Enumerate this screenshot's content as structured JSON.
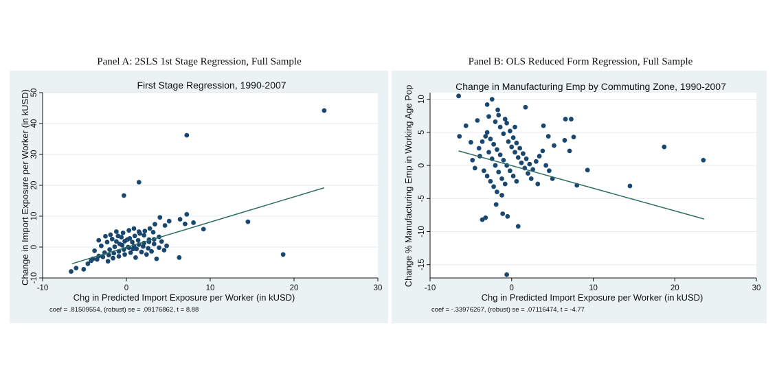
{
  "panels": [
    {
      "caption": "Panel A: 2SLS 1st Stage Regression, Full Sample",
      "note": "coef = .81509554, (robust) se = .09176862, t = 8.88"
    },
    {
      "caption": "Panel B: OLS Reduced Form Regression, Full Sample",
      "note": "coef = -.33976267, (robust) se = .07116474, t = -4.77"
    }
  ],
  "colors": {
    "frame": "#eaf2f3",
    "plot_bg": "#ffffff",
    "grid": "#e6eaec",
    "marker": "#1a476f",
    "fit_line": "#2d6e62"
  },
  "chart_data": [
    {
      "type": "scatter",
      "title": "First Stage Regression, 1990-2007",
      "xlabel": "Chg in Predicted Import Exposure per Worker (in kUSD)",
      "ylabel": "Change in Import Exposure per Worker (in kUSD)",
      "xlim": [
        -10,
        30
      ],
      "ylim": [
        -10,
        50
      ],
      "xticks": [
        -10,
        0,
        10,
        20,
        30
      ],
      "yticks": [
        -10,
        0,
        10,
        20,
        30,
        40,
        50
      ],
      "grid": true,
      "series": [
        {
          "points": [
            [
              23.6,
              44.2
            ],
            [
              7.2,
              36.2
            ],
            [
              1.5,
              21.0
            ],
            [
              -0.3,
              16.7
            ],
            [
              14.5,
              8.2
            ],
            [
              18.7,
              -2.4
            ],
            [
              9.2,
              5.8
            ],
            [
              6.3,
              -3.4
            ],
            [
              7.2,
              10.6
            ],
            [
              8.0,
              7.9
            ],
            [
              7.0,
              7.5
            ],
            [
              6.4,
              9.0
            ],
            [
              -6.6,
              -7.9
            ],
            [
              -6.0,
              -6.8
            ],
            [
              -5.1,
              -7.2
            ],
            [
              -4.6,
              -5.4
            ],
            [
              -4.0,
              -3.8
            ],
            [
              -3.3,
              -2.9
            ],
            [
              -2.6,
              -1.8
            ],
            [
              -2.0,
              -0.8
            ],
            [
              -1.4,
              0.1
            ],
            [
              -0.8,
              1.0
            ],
            [
              -0.2,
              1.9
            ],
            [
              0.4,
              2.8
            ],
            [
              1.0,
              3.6
            ],
            [
              1.6,
              4.4
            ],
            [
              2.2,
              5.2
            ],
            [
              2.8,
              6.0
            ],
            [
              3.4,
              7.4
            ],
            [
              4.0,
              9.6
            ],
            [
              4.6,
              7.0
            ],
            [
              5.1,
              8.4
            ],
            [
              -3.8,
              -1.2
            ],
            [
              -3.0,
              0.4
            ],
            [
              -2.3,
              1.6
            ],
            [
              -1.7,
              2.6
            ],
            [
              -1.0,
              3.6
            ],
            [
              -0.4,
              4.6
            ],
            [
              0.3,
              5.4
            ],
            [
              0.9,
              6.0
            ],
            [
              1.5,
              5.0
            ],
            [
              2.1,
              3.8
            ],
            [
              2.7,
              2.4
            ],
            [
              3.3,
              1.0
            ],
            [
              3.9,
              -0.2
            ],
            [
              4.5,
              -1.0
            ],
            [
              -4.2,
              -4.4
            ],
            [
              -3.5,
              -4.0
            ],
            [
              -2.8,
              -3.2
            ],
            [
              -2.1,
              -2.6
            ],
            [
              -1.5,
              -2.0
            ],
            [
              -0.9,
              -1.4
            ],
            [
              -0.3,
              -0.8
            ],
            [
              0.3,
              -0.2
            ],
            [
              0.9,
              0.3
            ],
            [
              1.5,
              0.8
            ],
            [
              2.1,
              1.3
            ],
            [
              2.7,
              1.7
            ],
            [
              3.3,
              2.5
            ],
            [
              3.9,
              3.3
            ],
            [
              -3.3,
              2.2
            ],
            [
              -2.5,
              3.5
            ],
            [
              -1.9,
              4.0
            ],
            [
              -1.2,
              5.0
            ],
            [
              -0.6,
              3.2
            ],
            [
              0.1,
              2.4
            ],
            [
              0.7,
              1.6
            ],
            [
              1.2,
              -0.6
            ],
            [
              1.8,
              -1.6
            ],
            [
              2.4,
              -2.4
            ],
            [
              3.0,
              -1.4
            ],
            [
              3.6,
              -3.8
            ],
            [
              -2.2,
              -4.6
            ],
            [
              -1.6,
              -3.6
            ],
            [
              -0.9,
              -3.0
            ],
            [
              -0.2,
              -2.4
            ],
            [
              0.5,
              -1.8
            ],
            [
              1.1,
              -3.4
            ],
            [
              -1.2,
              1.8
            ],
            [
              -0.5,
              0.6
            ],
            [
              0.2,
              0.0
            ],
            [
              0.8,
              -0.6
            ],
            [
              1.4,
              2.2
            ],
            [
              2.0,
              0.2
            ],
            [
              2.6,
              -0.4
            ],
            [
              3.2,
              4.8
            ],
            [
              4.2,
              1.8
            ],
            [
              4.8,
              0.4
            ]
          ]
        }
      ],
      "fit": {
        "x": [
          -6.5,
          23.6
        ],
        "y": [
          -5.4,
          19.2
        ]
      }
    },
    {
      "type": "scatter",
      "title": "Change in Manufacturing Emp by Commuting Zone, 1990-2007",
      "xlabel": "Chg in Predicted Import Exposure per Worker (in kUSD)",
      "ylabel": "Change % Manufacturing Emp in Working Age Pop",
      "xlim": [
        -10,
        30
      ],
      "ylim": [
        -17,
        11
      ],
      "xticks": [
        -10,
        0,
        10,
        20,
        30
      ],
      "yticks": [
        -15,
        -10,
        -5,
        0,
        5,
        10
      ],
      "grid": true,
      "series": [
        {
          "points": [
            [
              -6.5,
              10.5
            ],
            [
              -6.4,
              4.4
            ],
            [
              23.5,
              0.8
            ],
            [
              18.7,
              2.8
            ],
            [
              14.5,
              -3.1
            ],
            [
              9.3,
              -0.7
            ],
            [
              8.0,
              -3.0
            ],
            [
              7.6,
              4.3
            ],
            [
              7.3,
              7.0
            ],
            [
              6.6,
              7.0
            ],
            [
              7.1,
              2.2
            ],
            [
              6.5,
              3.8
            ],
            [
              -0.6,
              -16.5
            ],
            [
              0.8,
              -9.2
            ],
            [
              -3.6,
              -8.2
            ],
            [
              -3.2,
              -7.9
            ],
            [
              -0.5,
              -7.7
            ],
            [
              -1.1,
              -7.3
            ],
            [
              -1.9,
              -5.9
            ],
            [
              -1.2,
              -4.5
            ],
            [
              -4.5,
              -0.4
            ],
            [
              -3.9,
              1.4
            ],
            [
              -5.0,
              3.5
            ],
            [
              -5.6,
              6.0
            ],
            [
              -4.2,
              6.8
            ],
            [
              -3.0,
              9.2
            ],
            [
              -2.4,
              10.0
            ],
            [
              -1.7,
              8.4
            ],
            [
              1.7,
              8.8
            ],
            [
              3.9,
              6.0
            ],
            [
              4.5,
              4.4
            ],
            [
              5.2,
              3.0
            ],
            [
              -3.0,
              5.0
            ],
            [
              -2.6,
              4.0
            ],
            [
              -2.2,
              3.2
            ],
            [
              -1.8,
              2.4
            ],
            [
              -1.4,
              1.6
            ],
            [
              -1.0,
              0.8
            ],
            [
              -0.6,
              0.0
            ],
            [
              -0.2,
              -0.8
            ],
            [
              0.2,
              -1.6
            ],
            [
              0.6,
              -2.4
            ],
            [
              -2.8,
              2.0
            ],
            [
              -2.4,
              1.0
            ],
            [
              -2.0,
              0.0
            ],
            [
              -1.6,
              -1.0
            ],
            [
              -1.2,
              -2.0
            ],
            [
              -0.8,
              -2.8
            ],
            [
              -0.4,
              3.6
            ],
            [
              0.0,
              2.8
            ],
            [
              0.4,
              2.0
            ],
            [
              0.8,
              1.2
            ],
            [
              1.2,
              0.4
            ],
            [
              1.6,
              -0.4
            ],
            [
              2.0,
              -1.2
            ],
            [
              2.4,
              -2.0
            ],
            [
              -3.4,
              -0.8
            ],
            [
              -3.0,
              -1.6
            ],
            [
              -2.6,
              -2.4
            ],
            [
              -2.2,
              -3.2
            ],
            [
              -1.8,
              -4.0
            ],
            [
              -1.4,
              5.8
            ],
            [
              -1.0,
              4.8
            ],
            [
              -0.6,
              6.4
            ],
            [
              -0.2,
              5.2
            ],
            [
              0.2,
              4.2
            ],
            [
              0.6,
              3.4
            ],
            [
              1.0,
              2.6
            ],
            [
              1.4,
              1.8
            ],
            [
              1.8,
              1.0
            ],
            [
              2.2,
              0.2
            ],
            [
              2.6,
              -0.6
            ],
            [
              3.0,
              0.6
            ],
            [
              3.4,
              1.4
            ],
            [
              3.8,
              2.2
            ],
            [
              4.2,
              0.0
            ],
            [
              -4.0,
              2.6
            ],
            [
              -3.6,
              3.6
            ],
            [
              -3.2,
              4.4
            ],
            [
              -2.8,
              7.4
            ],
            [
              -2.0,
              6.6
            ],
            [
              -1.6,
              7.6
            ],
            [
              -0.8,
              7.0
            ],
            [
              0.4,
              5.8
            ],
            [
              4.6,
              -0.8
            ],
            [
              5.0,
              -2.0
            ],
            [
              3.2,
              -2.8
            ],
            [
              -4.8,
              0.8
            ]
          ]
        }
      ],
      "fit": {
        "x": [
          -6.5,
          23.6
        ],
        "y": [
          2.2,
          -8.1
        ]
      }
    }
  ]
}
